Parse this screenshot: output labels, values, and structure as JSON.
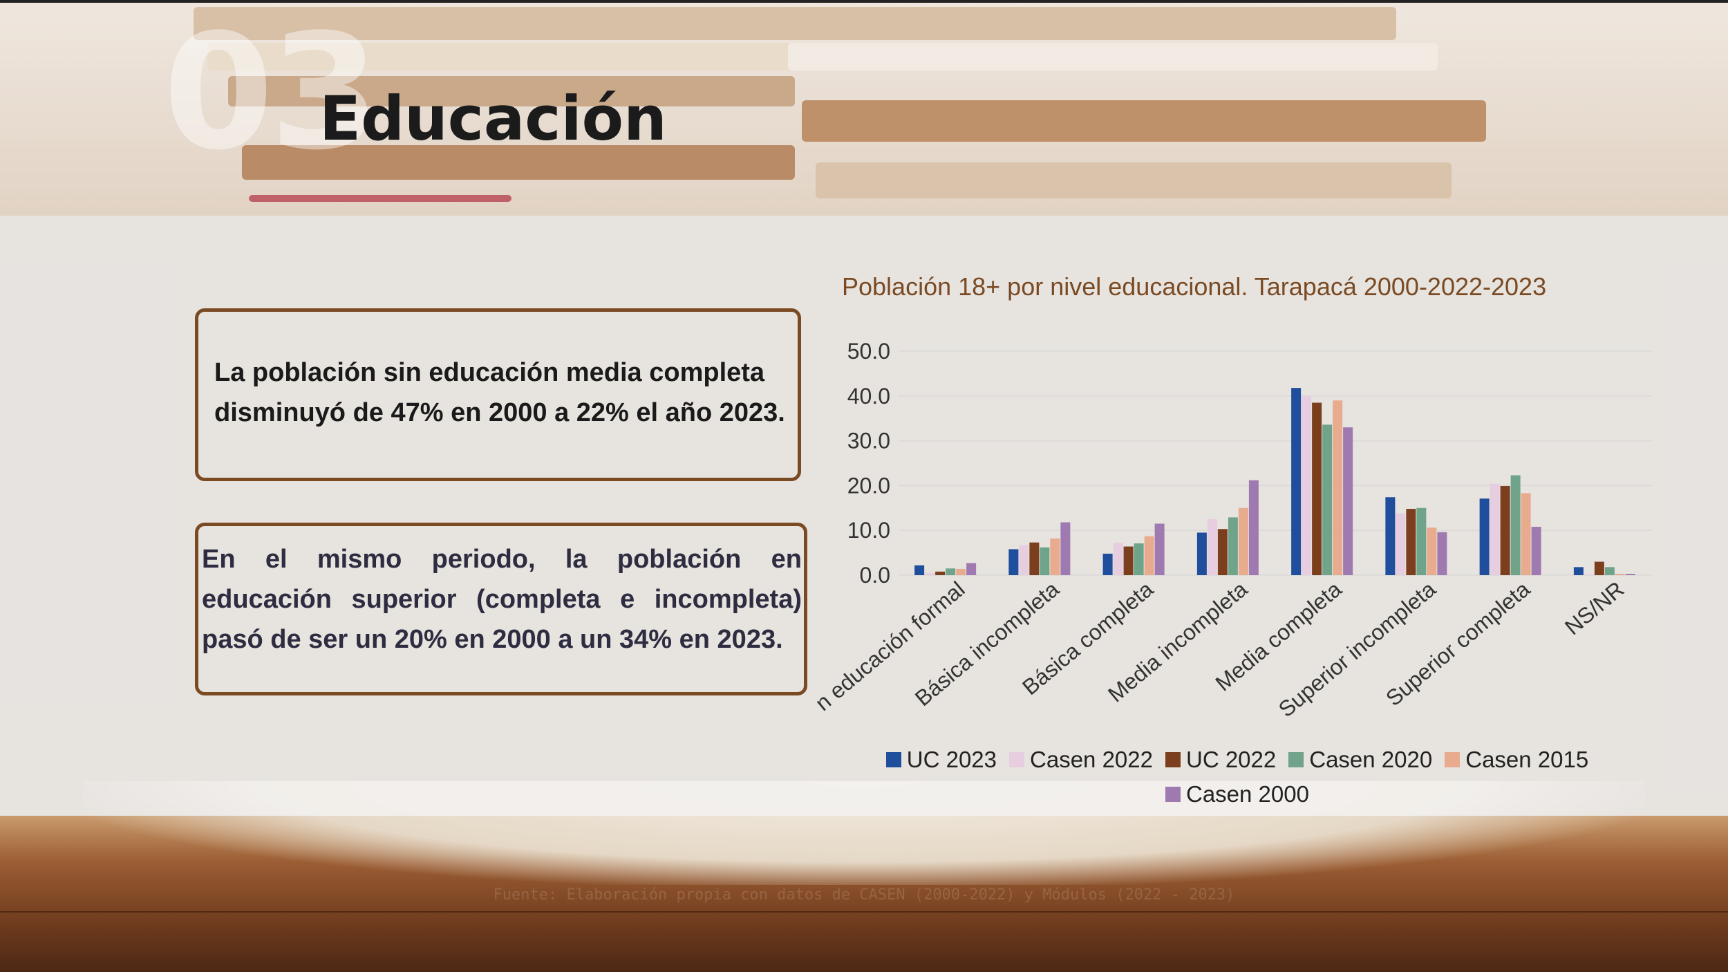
{
  "slide": {
    "number": "03",
    "title": "Educación"
  },
  "boxes": {
    "first": "La población sin educación media completa disminuyó de 47% en 2000 a 22% el año 2023.",
    "second": "En el mismo periodo, la población en educación superior (completa e incompleta) pasó de ser un 20% en 2000 a un 34% en 2023."
  },
  "footer": {
    "source": "Fuente: Elaboración propia con datos de CASEN (2000-2022) y Módulos (2022 - 2023)"
  },
  "colors": {
    "box_border": "#7a4a23",
    "title_accent": "#7a4a23"
  },
  "chart_data": {
    "type": "bar",
    "title": "Población 18+ por nivel educacional. Tarapacá 2000-2022-2023",
    "xlabel": "",
    "ylabel": "",
    "ylim": [
      0,
      50
    ],
    "yticks": [
      "0.0",
      "10.0",
      "20.0",
      "30.0",
      "40.0",
      "50.0"
    ],
    "grid": true,
    "legend_position": "bottom",
    "categories": [
      "Sin educación formal",
      "Básica incompleta",
      "Básica completa",
      "Media incompleta",
      "Media completa",
      "Superior incompleta",
      "Superior completa",
      "NS/NR"
    ],
    "visible_category_labels": [
      "n educación formal",
      "Básica incompleta",
      "Básica completa",
      "Media incompleta",
      "Media completa",
      "Superior incompleta",
      "Superior completa",
      "NS/NR"
    ],
    "series": [
      {
        "name": "UC 2023",
        "color": "#1f4e9c",
        "values": [
          2.2,
          5.8,
          4.8,
          9.5,
          41.8,
          17.4,
          17.1,
          1.8
        ]
      },
      {
        "name": "Casen 2022",
        "color": "#e6cde0",
        "values": [
          0.5,
          6.7,
          7.2,
          12.5,
          40.0,
          13.8,
          20.4,
          0.2
        ]
      },
      {
        "name": "UC 2022",
        "color": "#7b3f1d",
        "values": [
          0.8,
          7.3,
          6.4,
          10.3,
          38.5,
          14.8,
          19.9,
          3.0
        ]
      },
      {
        "name": "Casen 2020",
        "color": "#6fa38a",
        "values": [
          1.5,
          6.2,
          7.1,
          12.9,
          33.6,
          15.0,
          22.3,
          1.8
        ]
      },
      {
        "name": "Casen 2015",
        "color": "#e8ab8e",
        "values": [
          1.4,
          8.2,
          8.7,
          15.0,
          39.0,
          10.6,
          18.3,
          0.3
        ]
      },
      {
        "name": "Casen 2000",
        "color": "#9f7ab0",
        "values": [
          2.7,
          11.8,
          11.5,
          21.2,
          33.0,
          9.6,
          10.8,
          0.3
        ]
      }
    ]
  }
}
